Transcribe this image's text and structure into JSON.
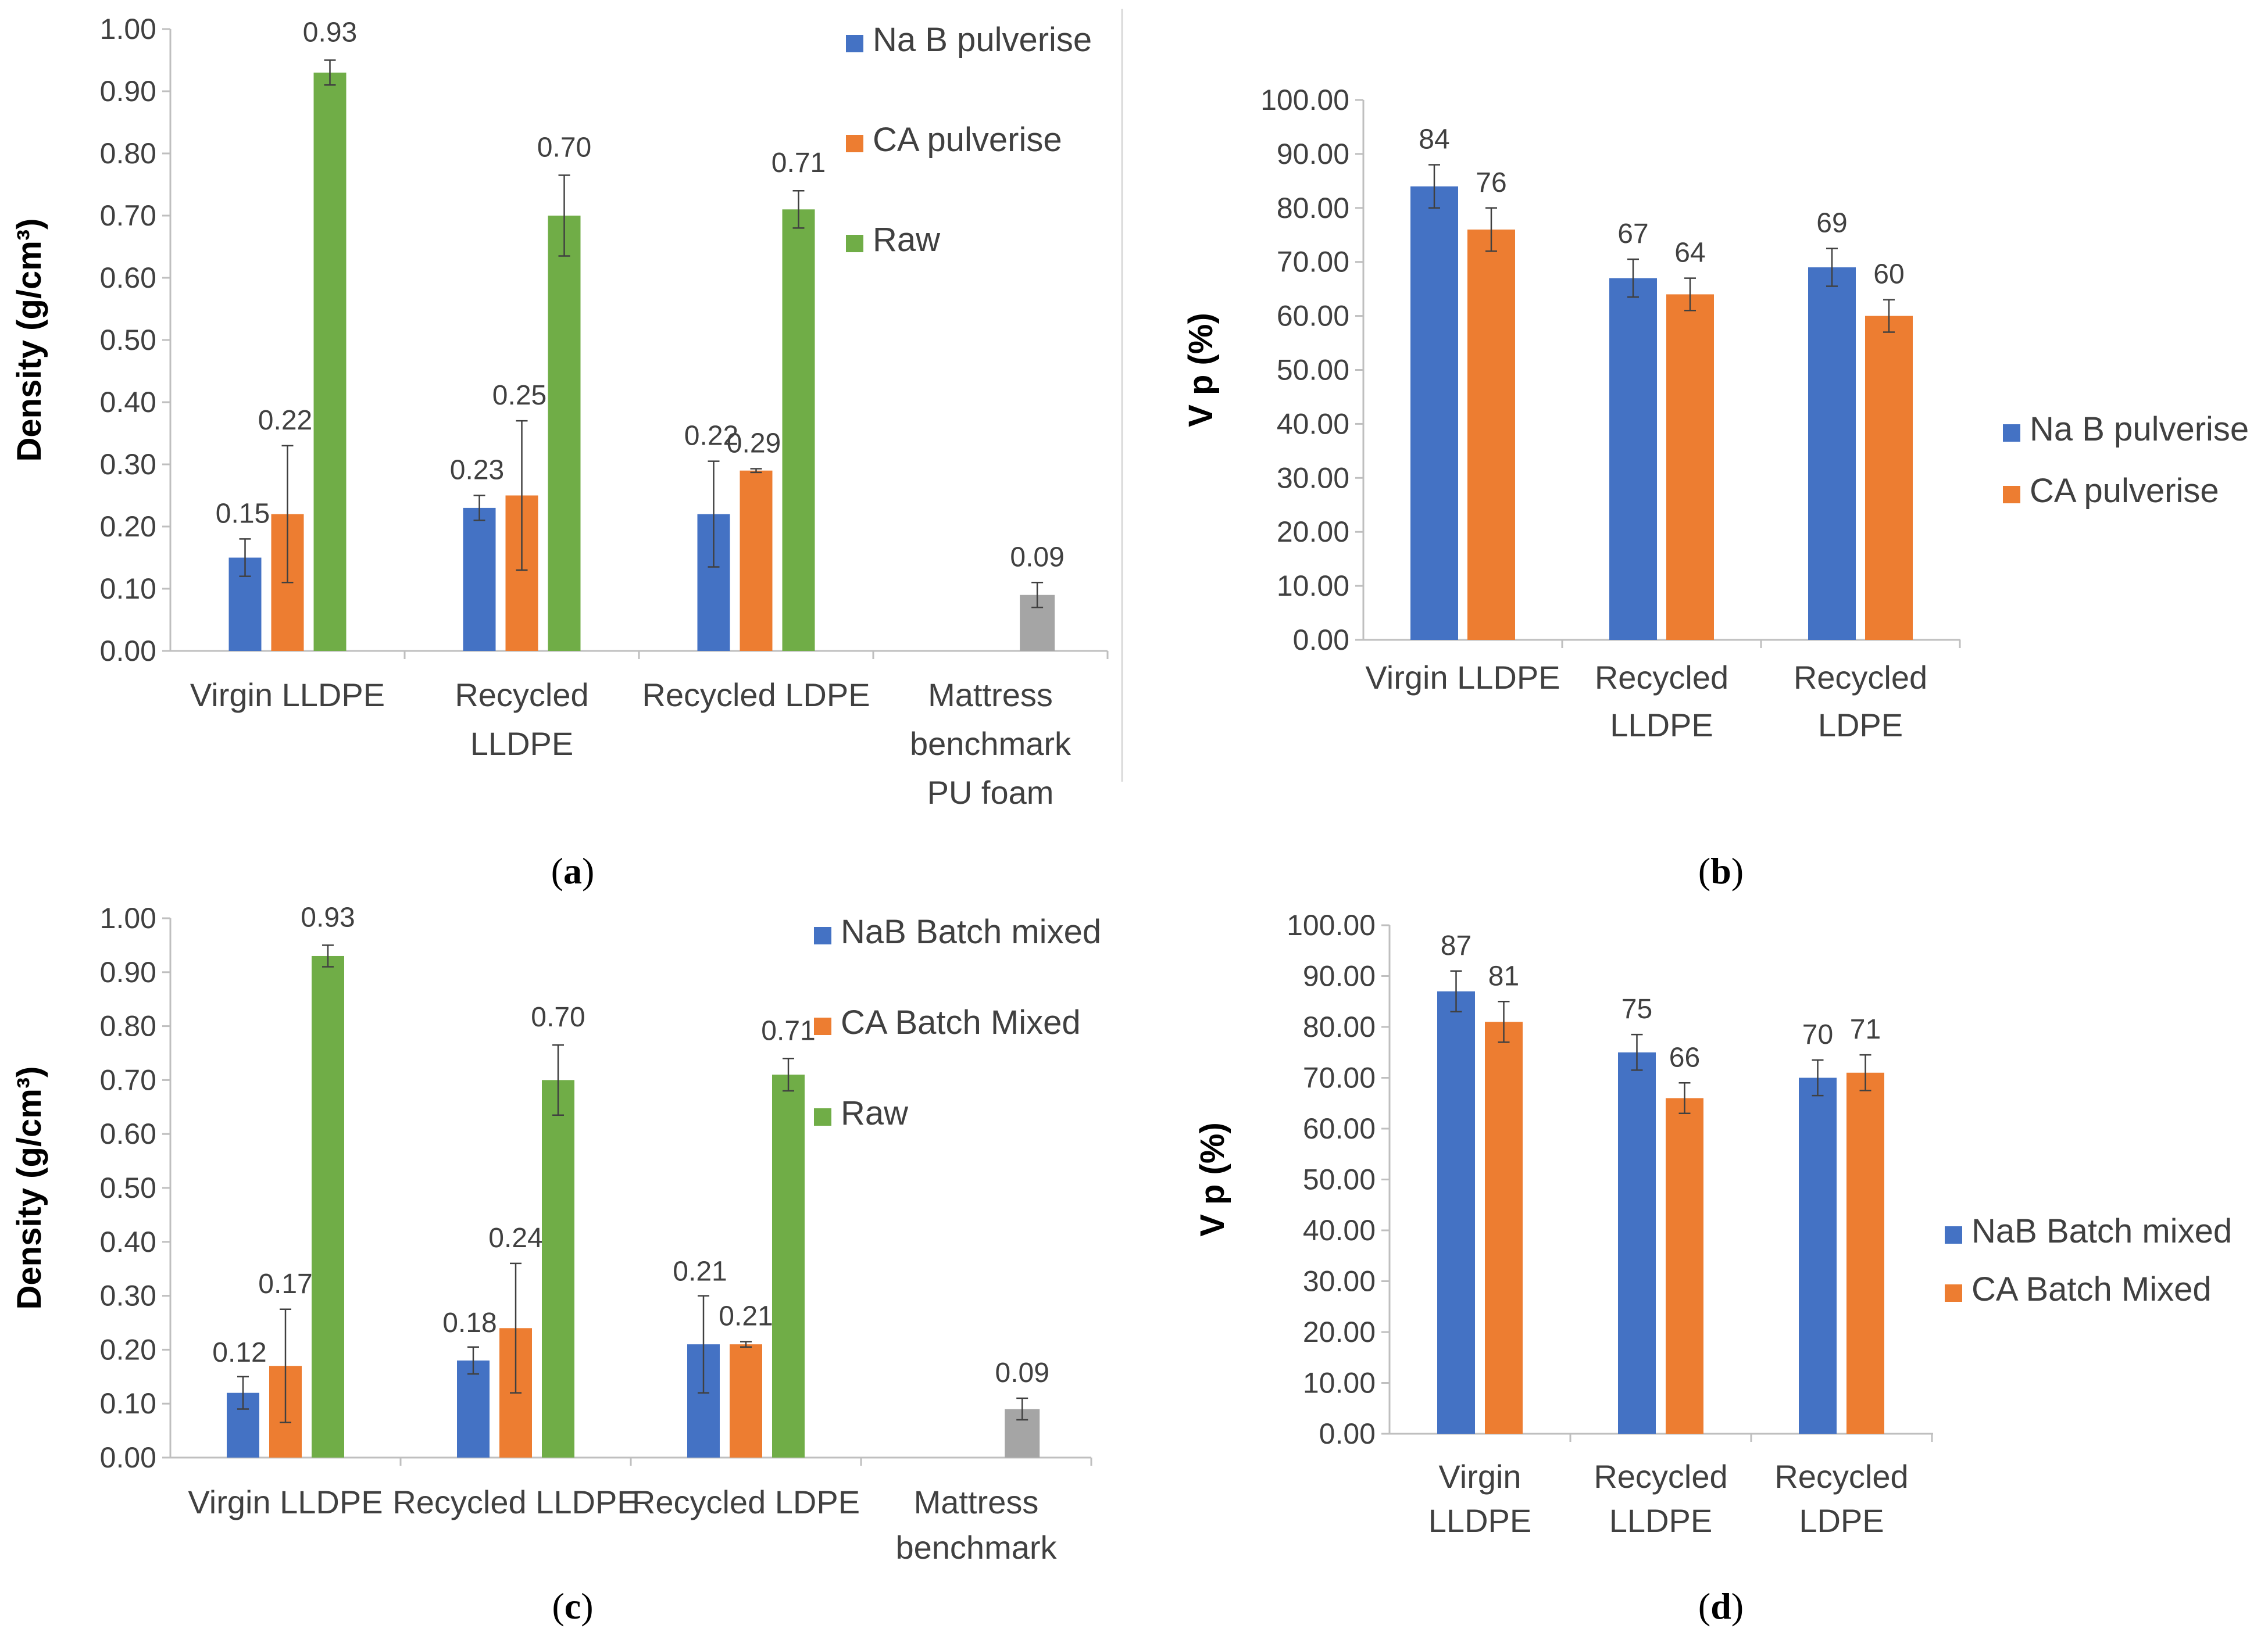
{
  "colors": {
    "blue": "#4472C4",
    "orange": "#ED7D31",
    "green": "#70AD47",
    "gray": "#A5A5A5",
    "axis": "#BFBFBF",
    "text": "#404040"
  },
  "captions": [
    "a",
    "b",
    "c",
    "d"
  ],
  "chart_data": [
    {
      "type": "bar",
      "panel": "a",
      "ylabel": "Density (g/cm³)",
      "ylim": [
        0,
        1.0
      ],
      "yticks": [
        "0.00",
        "0.10",
        "0.20",
        "0.30",
        "0.40",
        "0.50",
        "0.60",
        "0.70",
        "0.80",
        "0.90",
        "1.00"
      ],
      "categories": [
        [
          "Virgin LLDPE"
        ],
        [
          "Recycled",
          "LLDPE"
        ],
        [
          "Recycled LDPE"
        ],
        [
          "Mattress",
          "benchmark",
          "PU foam"
        ]
      ],
      "legend_position": "top-right",
      "series": [
        {
          "name": "Na B pulverise",
          "color": "#4472C4",
          "values": [
            0.15,
            0.23,
            0.22,
            null
          ],
          "errors": [
            0.03,
            0.02,
            0.085,
            null
          ],
          "labels": [
            "0.15",
            "0.23",
            "0.22",
            ""
          ]
        },
        {
          "name": "CA pulverise",
          "color": "#ED7D31",
          "values": [
            0.22,
            0.25,
            0.29,
            null
          ],
          "errors": [
            0.11,
            0.12,
            0.003,
            null
          ],
          "labels": [
            "0.22",
            "0.25",
            "0.29",
            ""
          ]
        },
        {
          "name": "Raw",
          "color": "#70AD47",
          "values": [
            0.93,
            0.7,
            0.71,
            null
          ],
          "errors": [
            0.02,
            0.065,
            0.03,
            null
          ],
          "labels": [
            "0.93",
            "0.70",
            "0.71",
            ""
          ]
        }
      ],
      "benchmark": {
        "value": 0.09,
        "error": 0.02,
        "label": "0.09",
        "color": "#A5A5A5"
      }
    },
    {
      "type": "bar",
      "panel": "b",
      "ylabel": "V p (%)",
      "ylim": [
        0,
        100
      ],
      "yticks": [
        "0.00",
        "10.00",
        "20.00",
        "30.00",
        "40.00",
        "50.00",
        "60.00",
        "70.00",
        "80.00",
        "90.00",
        "100.00"
      ],
      "categories": [
        [
          "Virgin LLDPE"
        ],
        [
          "Recycled",
          "LLDPE"
        ],
        [
          "Recycled",
          "LDPE"
        ]
      ],
      "legend_position": "right",
      "series": [
        {
          "name": "Na B pulverise",
          "color": "#4472C4",
          "values": [
            84,
            67,
            69
          ],
          "errors": [
            4,
            3.5,
            3.5
          ],
          "labels": [
            "84",
            "67",
            "69"
          ]
        },
        {
          "name": "CA pulverise",
          "color": "#ED7D31",
          "values": [
            76,
            64,
            60
          ],
          "errors": [
            4,
            3,
            3
          ],
          "labels": [
            "76",
            "64",
            "60"
          ]
        }
      ]
    },
    {
      "type": "bar",
      "panel": "c",
      "ylabel": "Density (g/cm³)",
      "ylim": [
        0,
        1.0
      ],
      "yticks": [
        "0.00",
        "0.10",
        "0.20",
        "0.30",
        "0.40",
        "0.50",
        "0.60",
        "0.70",
        "0.80",
        "0.90",
        "1.00"
      ],
      "categories": [
        [
          "Virgin LLDPE"
        ],
        [
          "Recycled LLDPE"
        ],
        [
          "Recycled LDPE"
        ],
        [
          "Mattress",
          "benchmark"
        ]
      ],
      "legend_position": "top-right",
      "series": [
        {
          "name": "NaB Batch mixed",
          "color": "#4472C4",
          "values": [
            0.12,
            0.18,
            0.21,
            null
          ],
          "errors": [
            0.03,
            0.025,
            0.09,
            null
          ],
          "labels": [
            "0.12",
            "0.18",
            "0.21",
            ""
          ]
        },
        {
          "name": "CA Batch Mixed",
          "color": "#ED7D31",
          "values": [
            0.17,
            0.24,
            0.21,
            null
          ],
          "errors": [
            0.105,
            0.12,
            0.005,
            null
          ],
          "labels": [
            "0.17",
            "0.24",
            "0.21",
            ""
          ]
        },
        {
          "name": "Raw",
          "color": "#70AD47",
          "values": [
            0.93,
            0.7,
            0.71,
            null
          ],
          "errors": [
            0.02,
            0.065,
            0.03,
            null
          ],
          "labels": [
            "0.93",
            "0.70",
            "0.71",
            ""
          ]
        }
      ],
      "benchmark": {
        "value": 0.09,
        "error": 0.02,
        "label": "0.09",
        "color": "#A5A5A5"
      }
    },
    {
      "type": "bar",
      "panel": "d",
      "ylabel": "V p (%)",
      "ylim": [
        0,
        100
      ],
      "yticks": [
        "0.00",
        "10.00",
        "20.00",
        "30.00",
        "40.00",
        "50.00",
        "60.00",
        "70.00",
        "80.00",
        "90.00",
        "100.00"
      ],
      "categories": [
        [
          "Virgin",
          "LLDPE"
        ],
        [
          "Recycled",
          "LLDPE"
        ],
        [
          "Recycled",
          "LDPE"
        ]
      ],
      "legend_position": "right",
      "series": [
        {
          "name": "NaB Batch mixed",
          "color": "#4472C4",
          "values": [
            87,
            75,
            70
          ],
          "errors": [
            4,
            3.5,
            3.5
          ],
          "labels": [
            "87",
            "75",
            "70"
          ]
        },
        {
          "name": "CA Batch Mixed",
          "color": "#ED7D31",
          "values": [
            81,
            66,
            71
          ],
          "errors": [
            4,
            3,
            3.5
          ],
          "labels": [
            "81",
            "66",
            "71"
          ]
        }
      ]
    }
  ]
}
